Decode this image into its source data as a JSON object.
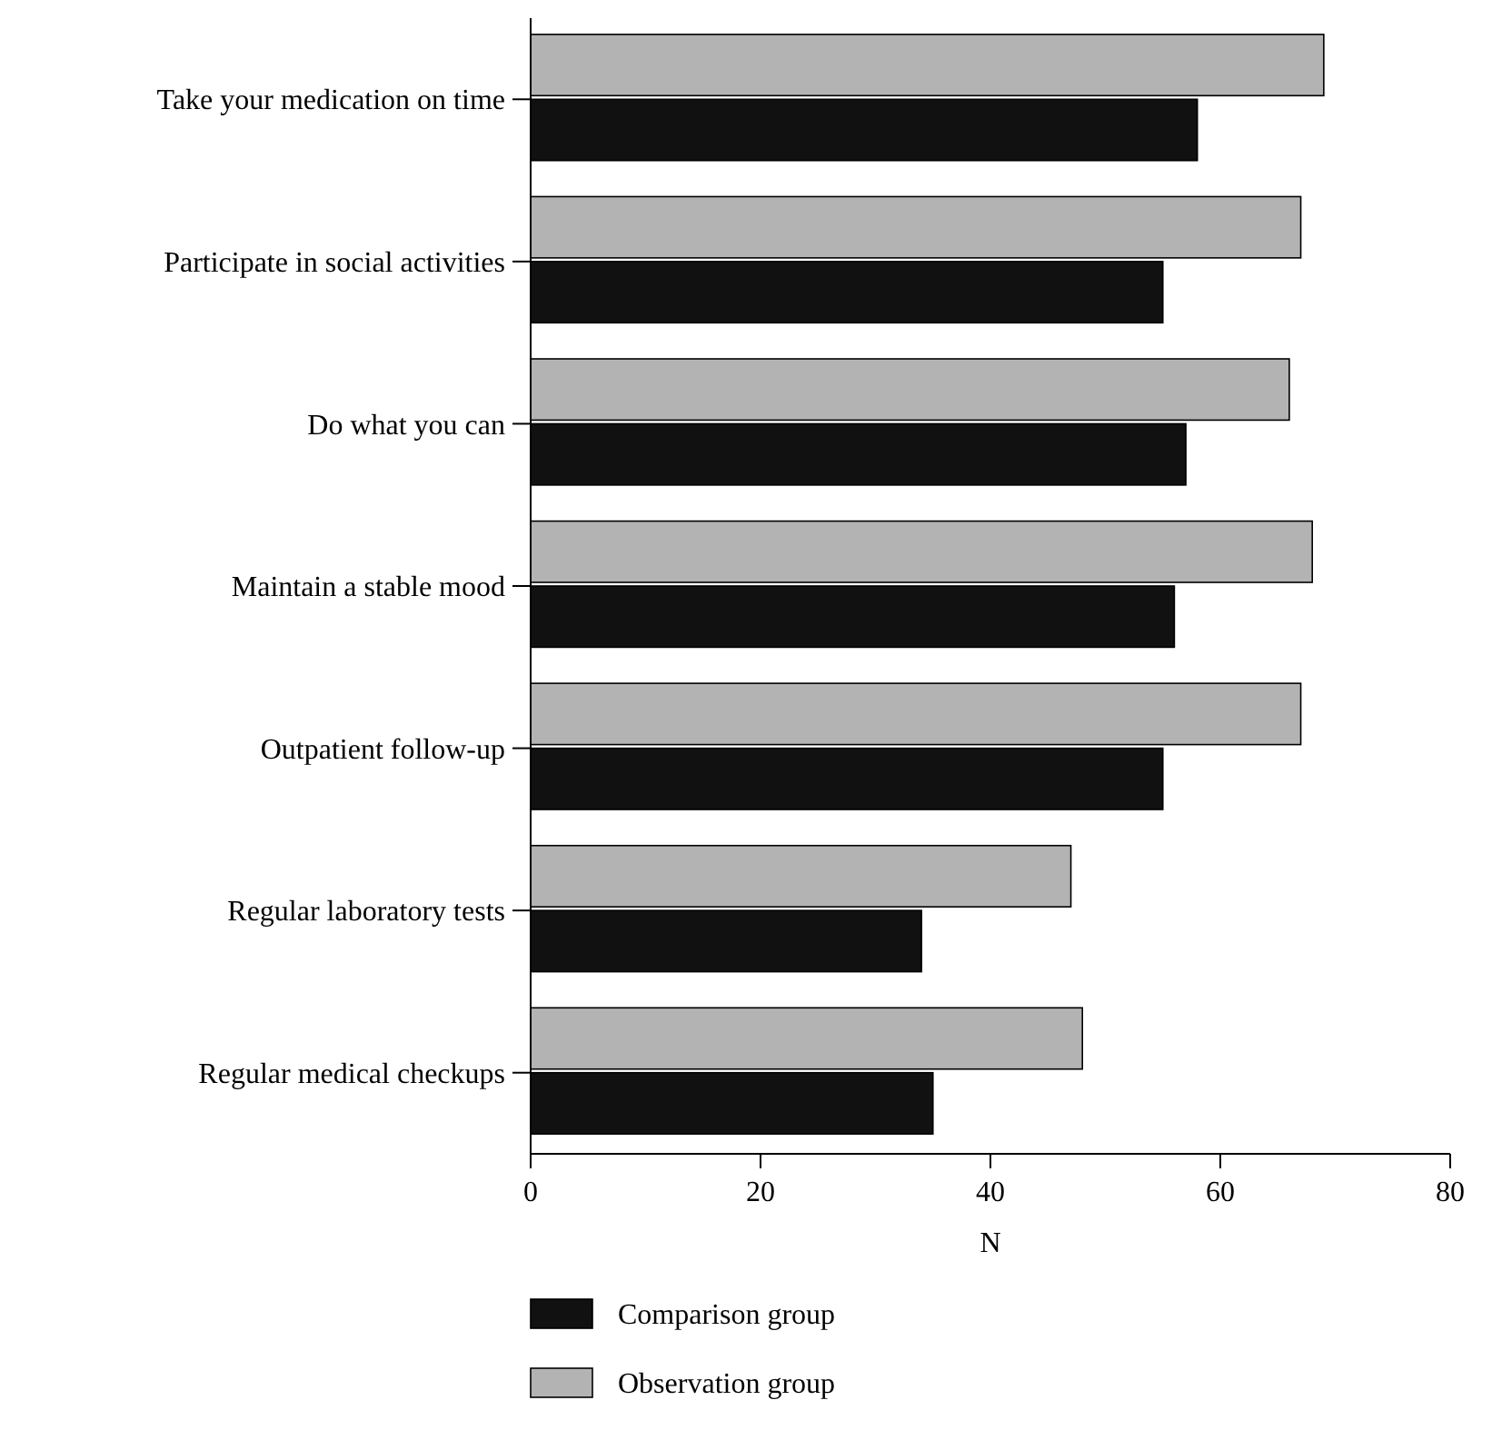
{
  "chart_data": {
    "type": "bar",
    "orientation": "horizontal",
    "xlabel": "N",
    "categories": [
      "Take your medication on time",
      "Participate in social activities",
      "Do what you can",
      "Maintain a stable mood",
      "Outpatient follow-up",
      "Regular laboratory tests",
      "Regular medical checkups"
    ],
    "series": [
      {
        "name": "Comparison group",
        "color": "#111111",
        "values": [
          58,
          55,
          57,
          56,
          55,
          34,
          35
        ]
      },
      {
        "name": "Observation group",
        "color": "#b3b3b3",
        "values": [
          69,
          67,
          66,
          68,
          67,
          47,
          48
        ]
      }
    ],
    "xlim": [
      0,
      80
    ],
    "xticks": [
      0,
      20,
      40,
      60,
      80
    ],
    "grid": false,
    "legend": "bottom"
  }
}
